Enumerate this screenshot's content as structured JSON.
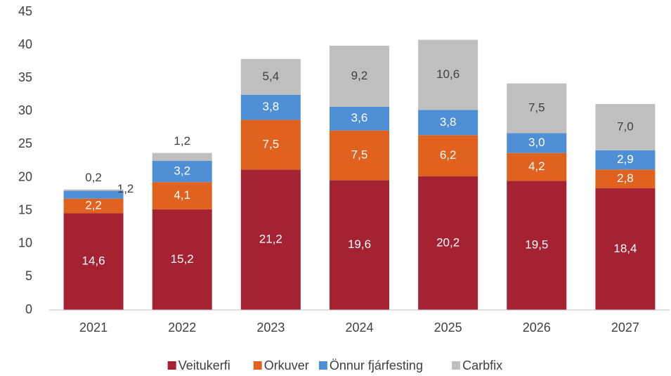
{
  "chart_data": {
    "type": "stacked_bar",
    "categories": [
      "2021",
      "2022",
      "2023",
      "2024",
      "2025",
      "2026",
      "2027"
    ],
    "series": [
      {
        "name": "Veitukerfi",
        "color": "#a52232",
        "values": [
          14.6,
          15.2,
          21.2,
          19.6,
          20.2,
          19.5,
          18.4
        ],
        "value_labels": [
          "14,6",
          "15,2",
          "21,2",
          "19,6",
          "20,2",
          "19,5",
          "18,4"
        ]
      },
      {
        "name": "Orkuver",
        "color": "#e0621e",
        "values": [
          2.2,
          4.1,
          7.5,
          7.5,
          6.2,
          4.2,
          2.8
        ],
        "value_labels": [
          "2,2",
          "4,1",
          "7,5",
          "7,5",
          "6,2",
          "4,2",
          "2,8"
        ]
      },
      {
        "name": "Önnur fjárfesting",
        "color": "#4f8fd6",
        "values": [
          1.2,
          3.2,
          3.8,
          3.6,
          3.8,
          3.0,
          2.9
        ],
        "value_labels": [
          "1,2",
          "3,2",
          "3,8",
          "3,6",
          "3,8",
          "3,0",
          "2,9"
        ]
      },
      {
        "name": "Carbfix",
        "color": "#bfbfbf",
        "values": [
          0.2,
          1.2,
          5.4,
          9.2,
          10.6,
          7.5,
          7.0
        ],
        "value_labels": [
          "0,2",
          "1,2",
          "5,4",
          "9,2",
          "10,6",
          "7,5",
          "7,0"
        ]
      }
    ],
    "ylim": [
      0,
      45
    ],
    "yticks": [
      0,
      5,
      10,
      15,
      20,
      25,
      30,
      35,
      40,
      45
    ],
    "grid": false,
    "legend": "bottom"
  }
}
